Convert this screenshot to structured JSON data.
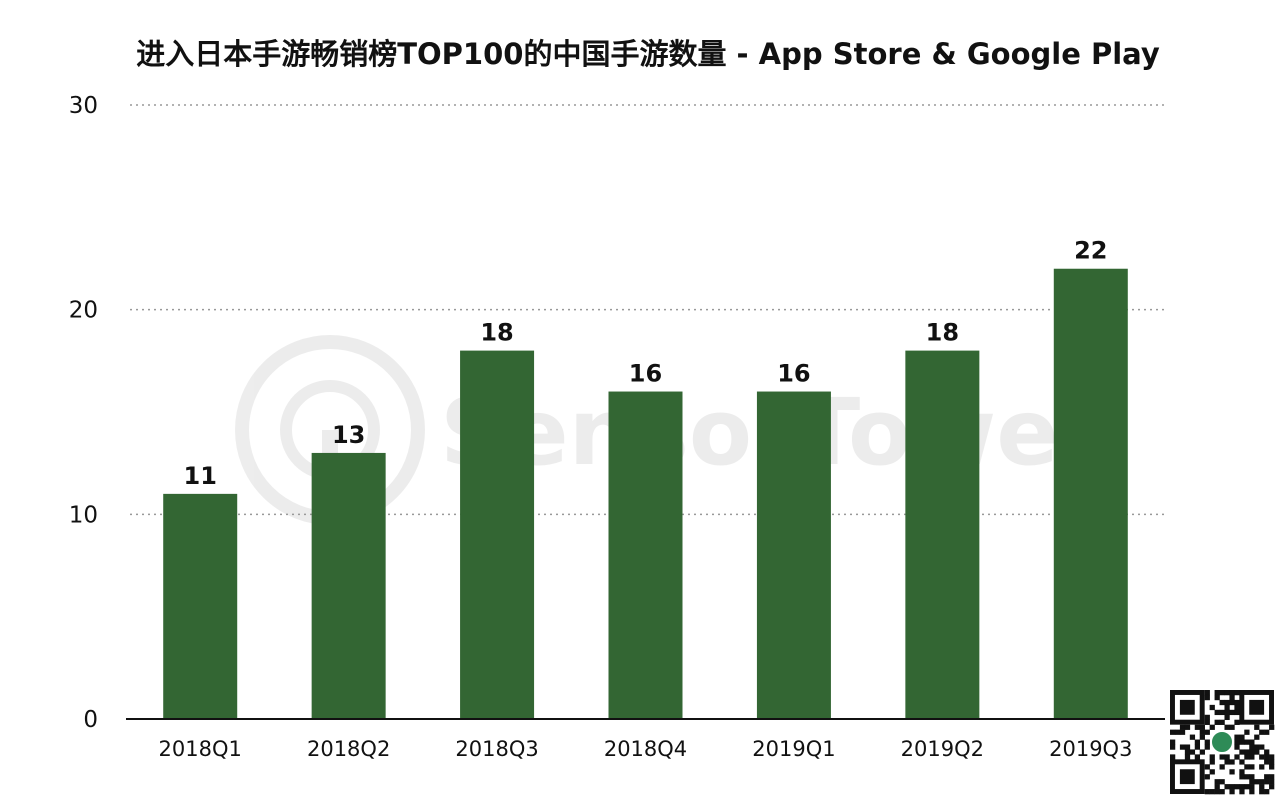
{
  "chart_data": {
    "type": "bar",
    "title": "进入日本手游畅销榜TOP100的中国手游数量 - App Store & Google Play",
    "xlabel": "",
    "ylabel": "",
    "categories": [
      "2018Q1",
      "2018Q2",
      "2018Q3",
      "2018Q4",
      "2019Q1",
      "2019Q2",
      "2019Q3"
    ],
    "values": [
      11,
      13,
      18,
      16,
      16,
      18,
      22
    ],
    "ylim": [
      0,
      30
    ],
    "yticks": [
      0,
      10,
      20,
      30
    ],
    "grid": true,
    "data_labels": true,
    "bar_color": "#336633"
  },
  "watermark": {
    "text": "SensorTower",
    "icon": "sensortower-logo-icon"
  },
  "corner_icon": "qr-code-icon"
}
